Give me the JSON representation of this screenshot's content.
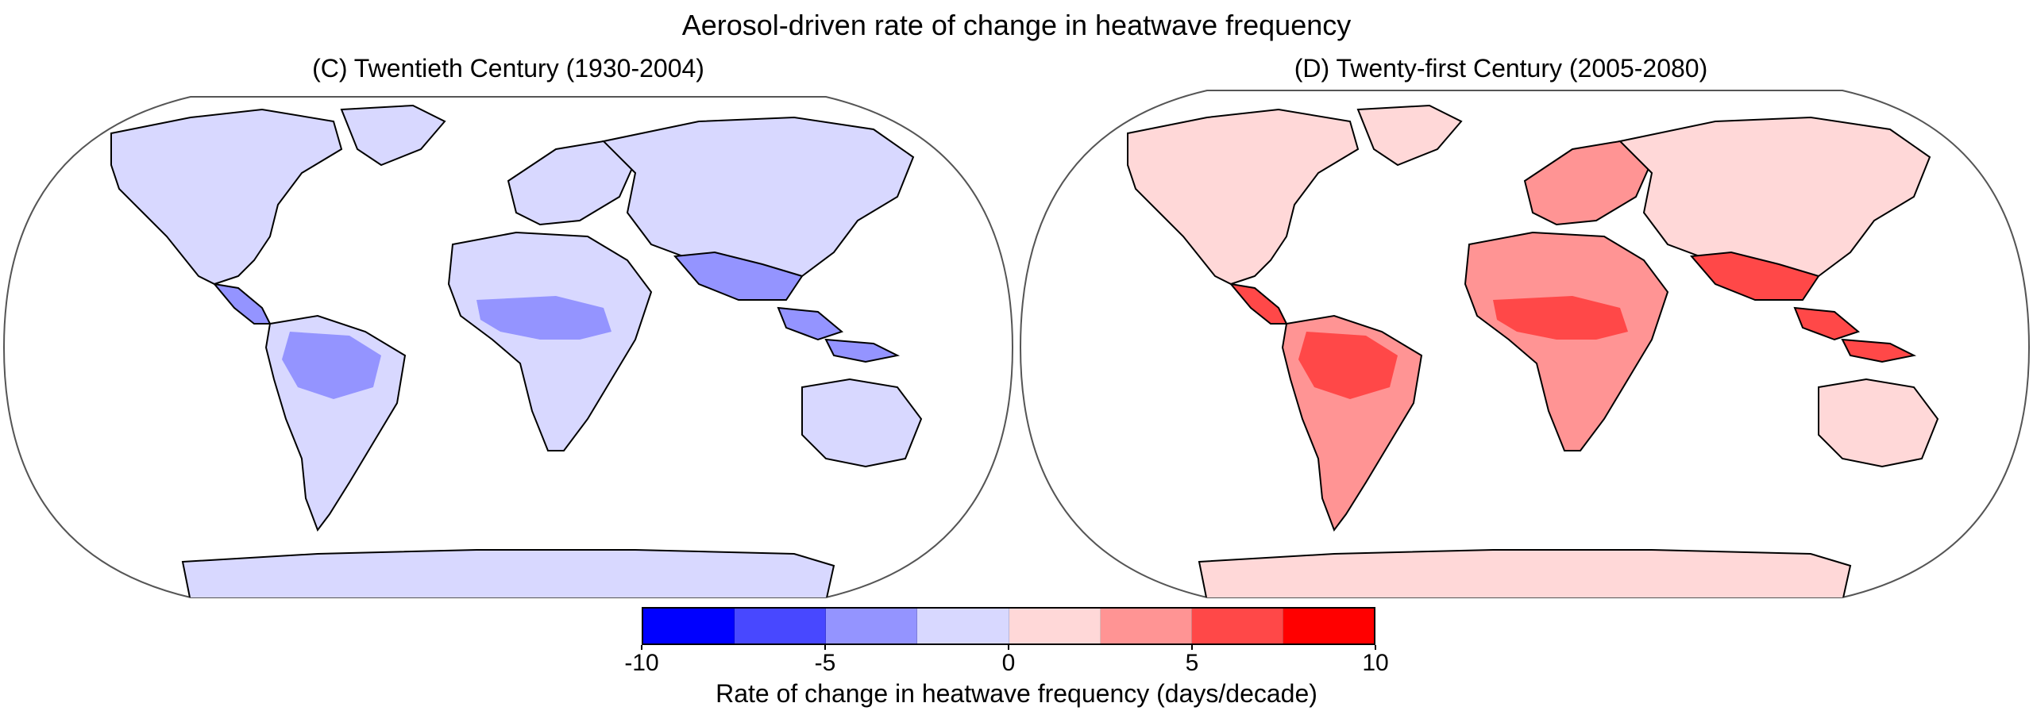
{
  "figure": {
    "title": "Aerosol-driven rate of change in heatwave frequency"
  },
  "panels": [
    {
      "id": "C",
      "title": "(C) Twentieth Century (1930-2004)",
      "sign": "negative"
    },
    {
      "id": "D",
      "title": "(D) Twenty-first Century (2005-2080)",
      "sign": "positive"
    }
  ],
  "colorbar": {
    "label": "Rate of change in heatwave frequency (days/decade)",
    "range": [
      -10,
      10
    ],
    "tick_values": [
      -10,
      -5,
      0,
      5,
      10
    ],
    "tick_labels": [
      "-10",
      "-5",
      "0",
      "5",
      "10"
    ],
    "colors": [
      "#0000ff",
      "#4848ff",
      "#9494ff",
      "#d8d8ff",
      "#ffd8d8",
      "#ff9494",
      "#ff4848",
      "#ff0000"
    ]
  },
  "colors": {
    "land_weak_negative": "#d8d8ff",
    "land_moderate_negative": "#9494ff",
    "land_weak_positive": "#ffd8d8",
    "land_moderate_positive": "#ff9494",
    "land_strong_positive": "#ff4848",
    "ocean": "#ffffff",
    "outline": "#333333"
  }
}
